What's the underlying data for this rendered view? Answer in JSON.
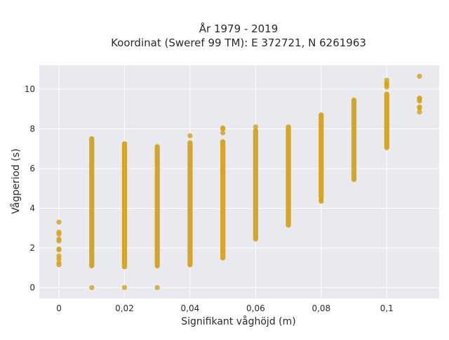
{
  "chart_data": {
    "type": "scatter",
    "title_line1": "År 1979 - 2019",
    "title_line2": "Koordinat (Sweref 99 TM): E 372721, N 6261963",
    "xlabel": "Signifikant våghöjd (m)",
    "ylabel": "Vågperiod (s)",
    "xlim": [
      -0.006,
      0.116
    ],
    "ylim": [
      -0.55,
      11.2
    ],
    "x_ticks": [
      0,
      0.02,
      0.04,
      0.06,
      0.08,
      0.1
    ],
    "x_tick_labels": [
      "0",
      "0,02",
      "0,04",
      "0,06",
      "0,08",
      "0,1"
    ],
    "y_ticks": [
      0,
      2,
      4,
      6,
      8,
      10
    ],
    "y_tick_labels": [
      "0",
      "2",
      "4",
      "6",
      "8",
      "10"
    ],
    "grid": true,
    "colors": {
      "marker": "#d4a017",
      "plot_bg": "#e9e9f0",
      "grid": "#ffffff",
      "text": "#2a2a2a"
    },
    "columns": [
      {
        "x": 0.0,
        "continuous": [],
        "points": [
          1.15,
          1.25,
          1.45,
          1.6,
          1.9,
          1.95,
          2.35,
          2.45,
          2.7,
          2.8,
          3.3
        ]
      },
      {
        "x": 0.01,
        "continuous": [
          [
            1.1,
            7.5
          ]
        ],
        "points": [
          0.0
        ]
      },
      {
        "x": 0.02,
        "continuous": [
          [
            1.05,
            7.25
          ]
        ],
        "points": [
          0.0
        ]
      },
      {
        "x": 0.03,
        "continuous": [
          [
            1.1,
            7.1
          ]
        ],
        "points": [
          0.0
        ]
      },
      {
        "x": 0.04,
        "continuous": [
          [
            1.15,
            7.3
          ]
        ],
        "points": [
          7.65
        ]
      },
      {
        "x": 0.05,
        "continuous": [
          [
            1.5,
            7.35
          ]
        ],
        "points": [
          7.8,
          8.0,
          8.05
        ]
      },
      {
        "x": 0.06,
        "continuous": [
          [
            2.45,
            7.9
          ]
        ],
        "points": [
          8.1
        ]
      },
      {
        "x": 0.07,
        "continuous": [
          [
            3.15,
            8.1
          ]
        ],
        "points": []
      },
      {
        "x": 0.08,
        "continuous": [
          [
            4.55,
            8.7
          ]
        ],
        "points": [
          4.35,
          4.4
        ]
      },
      {
        "x": 0.09,
        "continuous": [
          [
            5.45,
            9.45
          ]
        ],
        "points": []
      },
      {
        "x": 0.1,
        "continuous": [
          [
            7.05,
            9.75
          ]
        ],
        "points": [
          10.1,
          10.2,
          10.3,
          10.45
        ]
      },
      {
        "x": 0.11,
        "continuous": [],
        "points": [
          8.85,
          9.05,
          9.1,
          9.4,
          9.5,
          9.55,
          10.65
        ]
      }
    ]
  }
}
